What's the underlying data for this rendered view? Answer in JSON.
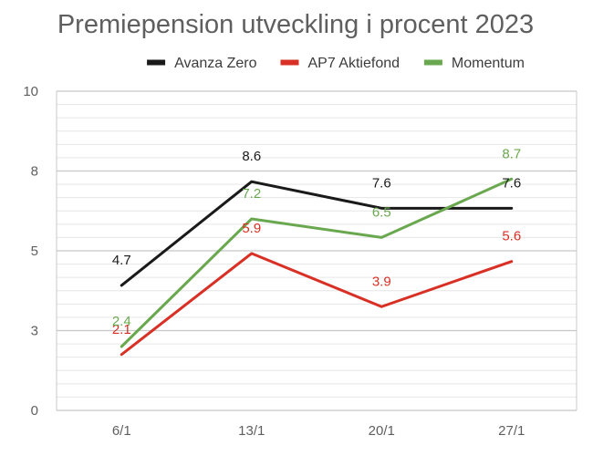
{
  "chart_data": {
    "type": "line",
    "title": "Premiepension utveckling i procent 2023",
    "xlabel": "",
    "ylabel": "",
    "categories": [
      "6/1",
      "13/1",
      "20/1",
      "27/1"
    ],
    "y_ticks": [
      "0",
      "3",
      "5",
      "8",
      "10"
    ],
    "ylim": [
      0,
      12
    ],
    "grid": true,
    "legend_position": "top",
    "series": [
      {
        "name": "Avanza Zero",
        "color": "#1a1a1a",
        "values": [
          4.7,
          8.6,
          7.6,
          7.6
        ],
        "labels": [
          "4.7",
          "8.6",
          "7.6",
          "7.6"
        ]
      },
      {
        "name": "AP7 Aktiefond",
        "color": "#d93025",
        "values": [
          2.1,
          5.9,
          3.9,
          5.6
        ],
        "labels": [
          "2.1",
          "5.9",
          "3.9",
          "5.6"
        ]
      },
      {
        "name": "Momentum",
        "color": "#6aa84f",
        "values": [
          2.4,
          7.2,
          6.5,
          8.7
        ],
        "labels": [
          "2.4",
          "7.2",
          "6.5",
          "8.7"
        ]
      }
    ]
  }
}
